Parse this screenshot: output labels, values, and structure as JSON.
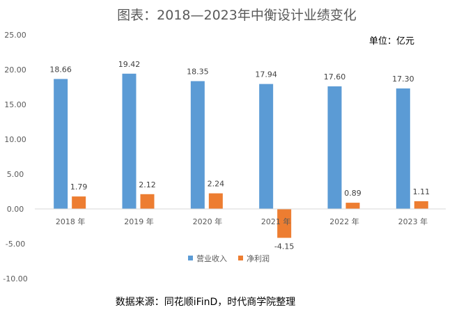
{
  "chart_data": {
    "type": "bar",
    "title": "图表：2018—2023年中衡设计业绩变化",
    "unit_label": "单位：亿元",
    "source": "数据来源：同花顺iFinD，时代商学院整理",
    "categories": [
      "2018 年",
      "2019 年",
      "2020 年",
      "2021 年",
      "2022 年",
      "2023 年"
    ],
    "series": [
      {
        "name": "营业收入",
        "color": "#5b9bd5",
        "values": [
          18.66,
          19.42,
          18.35,
          17.94,
          17.6,
          17.3
        ],
        "labels": [
          "18.66",
          "19.42",
          "18.35",
          "17.94",
          "17.60",
          "17.30"
        ]
      },
      {
        "name": "净利润",
        "color": "#ed7d31",
        "values": [
          1.79,
          2.12,
          2.24,
          -4.15,
          0.89,
          1.11
        ],
        "labels": [
          "1.79",
          "2.12",
          "2.24",
          "-4.15",
          "0.89",
          "1.11"
        ]
      }
    ],
    "ylim": [
      -10,
      25
    ],
    "yticks": [
      "-10.00",
      "-5.00",
      "0.00",
      "5.00",
      "10.00",
      "15.00",
      "20.00",
      "25.00"
    ],
    "grid": false,
    "legend": "bottom"
  }
}
